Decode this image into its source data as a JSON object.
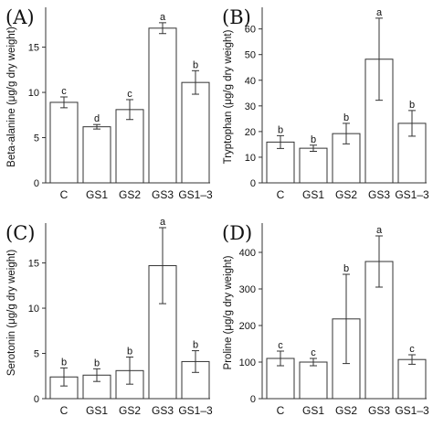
{
  "chart_data": [
    {
      "type": "bar",
      "panel": "(A)",
      "ylabel": "Beta-alanine (μg/g dry weight)",
      "categories": [
        "C",
        "GS1",
        "GS2",
        "GS3",
        "GS1–3"
      ],
      "values": [
        8.9,
        6.2,
        8.1,
        17.1,
        11.1
      ],
      "errors": [
        0.6,
        0.25,
        1.1,
        0.6,
        1.3
      ],
      "letters": [
        "c",
        "d",
        "c",
        "a",
        "b"
      ],
      "ylim": [
        0,
        19
      ],
      "yticks": [
        0,
        5,
        10,
        15
      ]
    },
    {
      "type": "bar",
      "panel": "(B)",
      "ylabel": "Tryptophan (μg/g dry weight)",
      "categories": [
        "C",
        "GS1",
        "GS2",
        "GS3",
        "GS1–3"
      ],
      "values": [
        15.9,
        13.5,
        19.2,
        48.2,
        23.2
      ],
      "errors": [
        2.5,
        1.2,
        4.0,
        16.0,
        5.0
      ],
      "letters": [
        "b",
        "b",
        "b",
        "a",
        "b"
      ],
      "ylim": [
        0,
        67
      ],
      "yticks": [
        0,
        10,
        20,
        30,
        40,
        50,
        60
      ]
    },
    {
      "type": "bar",
      "panel": "(C)",
      "ylabel": "Serotonin (μg/g dry weight)",
      "categories": [
        "C",
        "GS1",
        "GS2",
        "GS3",
        "GS1–3"
      ],
      "values": [
        2.4,
        2.6,
        3.1,
        14.7,
        4.1
      ],
      "errors": [
        1.0,
        0.7,
        1.5,
        4.2,
        1.2
      ],
      "letters": [
        "b",
        "b",
        "b",
        "a",
        "b"
      ],
      "ylim": [
        0,
        19
      ],
      "yticks": [
        0,
        5,
        10,
        15
      ]
    },
    {
      "type": "bar",
      "panel": "(D)",
      "ylabel": "Proline (μg/g dry weight)",
      "categories": [
        "C",
        "GS1",
        "GS2",
        "GS3",
        "GS1–3"
      ],
      "values": [
        110,
        100,
        218,
        375,
        107
      ],
      "errors": [
        20,
        10,
        122,
        70,
        13
      ],
      "letters": [
        "c",
        "c",
        "b",
        "a",
        "c"
      ],
      "ylim": [
        0,
        470
      ],
      "yticks": [
        0,
        100,
        200,
        300,
        400
      ]
    }
  ]
}
